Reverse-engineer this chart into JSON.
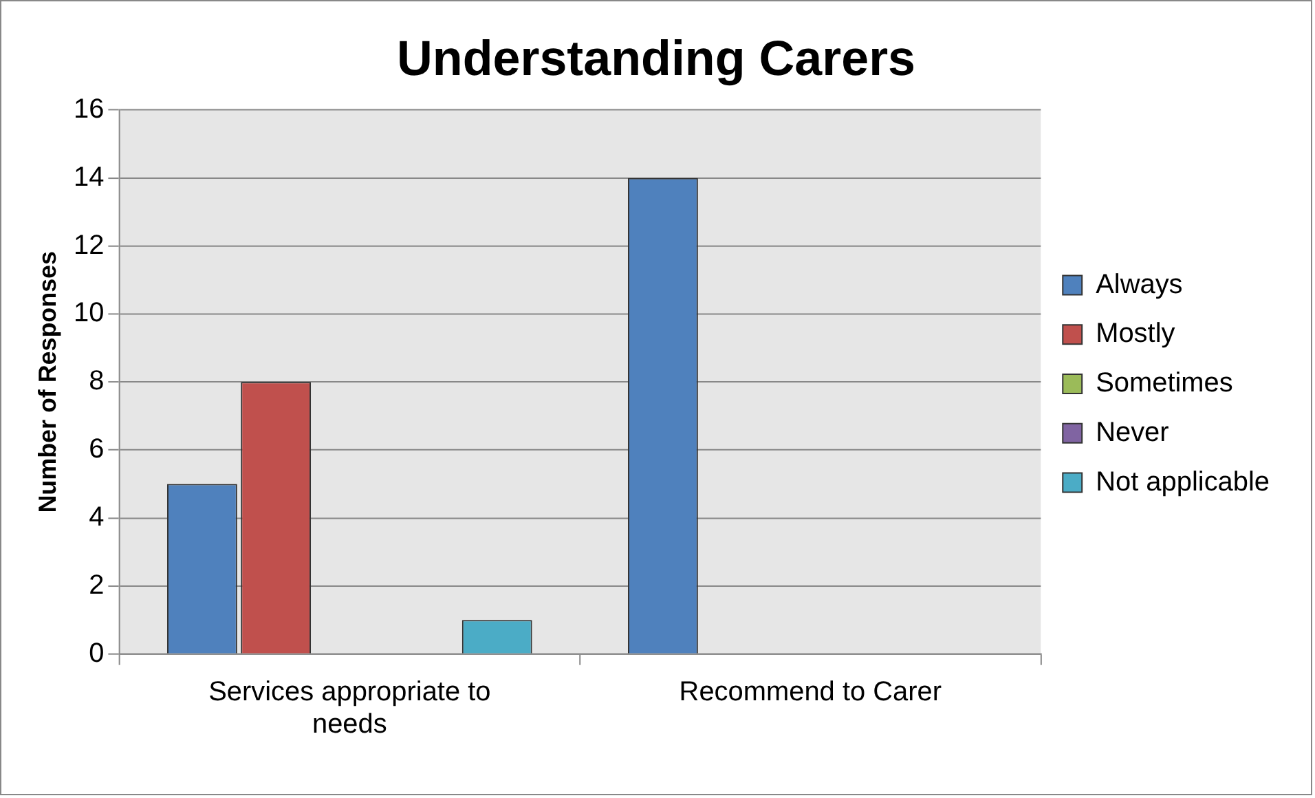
{
  "chart_data": {
    "type": "bar",
    "title": "Understanding Carers",
    "ylabel": "Number of Responses",
    "categories": [
      "Services appropriate to needs",
      "Recommend to Carer"
    ],
    "series": [
      {
        "name": "Always",
        "color": "#4f81bd",
        "values": [
          5,
          14
        ]
      },
      {
        "name": "Mostly",
        "color": "#c0504d",
        "values": [
          8,
          0
        ]
      },
      {
        "name": "Sometimes",
        "color": "#9bbb59",
        "values": [
          0,
          0
        ]
      },
      {
        "name": "Never",
        "color": "#8064a2",
        "values": [
          0,
          0
        ]
      },
      {
        "name": "Not applicable",
        "color": "#4bacc6",
        "values": [
          1,
          0
        ]
      }
    ],
    "ylim": [
      0,
      16
    ],
    "yticks": [
      0,
      2,
      4,
      6,
      8,
      10,
      12,
      14,
      16
    ],
    "grid": "y",
    "legend": "right"
  }
}
